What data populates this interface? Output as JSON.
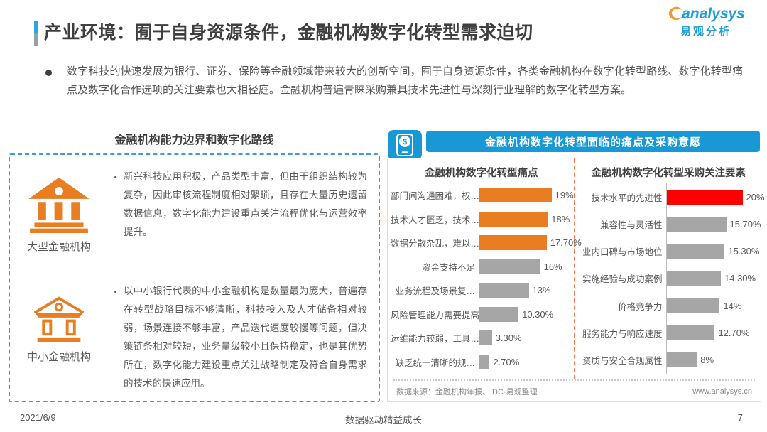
{
  "page": {
    "title": "产业环境：囿于自身资源条件，金融机构数字化转型需求迫切",
    "logo": {
      "brand": "analysys",
      "brand_cn": "易观分析"
    },
    "intro": "数字科技的快速发展为银行、证券、保险等金融领域带来较大的创新空间，囿于自身资源条件，各类金融机构在数字化转型路线、数字化转型痛点及数字化合作选项的关注要素也大相径庭。金融机构普遍青睐采购兼具技术先进性与深刻行业理解的数字化转型方案。",
    "watermark": "易观分析",
    "footer": {
      "date": "2021/6/9",
      "slogan": "数据驱动精益成长",
      "page_number": "7"
    }
  },
  "left_panel": {
    "heading": "金融机构能力边界和数字化路线",
    "items": [
      {
        "icon": "bank-large-icon",
        "label": "大型金融机构",
        "text": "新兴科技应用积极，产品类型丰富，但由于组织结构较为复杂，因此审核流程制度相对繁琐，且存在大量历史遗留数据信息，数字化能力建设重点关注流程优化与运营效率提升。"
      },
      {
        "icon": "bank-small-icon",
        "label": "中小金融机构",
        "text": "以中小银行代表的中小金融机构是数量最为庞大，普遍存在转型战略目标不够清晰，科技投入及人才储备相对较弱，场景连接不够丰富，产品迭代速度较慢等问题，但决策链条相对较短，业务量级较小且保持稳定，也是其优势所在，数字化能力建设重点关注战略制定及符合自身需求的技术的快速应用。"
      }
    ]
  },
  "right_panel": {
    "banner": "金融机构数字化转型面临的痛点及采购意愿",
    "source": "数据来源：金融机构年报、IDC·易观整理",
    "website": "www.analysys.cn"
  },
  "chart_data": [
    {
      "type": "bar",
      "orientation": "horizontal",
      "title": "金融机构数字化转型痛点",
      "categories": [
        "部门间沟通困难，权…",
        "技术人才匮乏，技术…",
        "数据分散杂乱，难以…",
        "资金支持不足",
        "业务流程及场景复…",
        "风险管理能力需要提高",
        "运维能力较弱，工具…",
        "缺乏统一清晰的规…"
      ],
      "values": [
        19,
        18,
        17.7,
        16,
        13,
        10.3,
        3.3,
        2.7
      ],
      "labels": [
        "19%",
        "18%",
        "17.70%",
        "16%",
        "13%",
        "10.30%",
        "3.30%",
        "2.70%"
      ],
      "bar_colors": [
        "#E87D21",
        "#E87D21",
        "#E87D21",
        "#A6A6A6",
        "#A6A6A6",
        "#A6A6A6",
        "#A6A6A6",
        "#A6A6A6"
      ],
      "xlim": [
        0,
        20
      ],
      "grid": false,
      "legend": null
    },
    {
      "type": "bar",
      "orientation": "horizontal",
      "title": "金融机构数字化转型采购关注要素",
      "categories": [
        "技术水平的先进性",
        "兼容性与灵活性",
        "业内口碑与市场地位",
        "实施经验与成功案例",
        "价格竞争力",
        "服务能力与响应速度",
        "资质与安全合规属性"
      ],
      "values": [
        20,
        15.7,
        15.3,
        14.3,
        14,
        12.7,
        8
      ],
      "labels": [
        "20%",
        "15.70%",
        "15.30%",
        "14.30%",
        "14%",
        "12.70%",
        "8%"
      ],
      "bar_colors": [
        "#FE0000",
        "#A6A6A6",
        "#A6A6A6",
        "#A6A6A6",
        "#A6A6A6",
        "#A6A6A6",
        "#A6A6A6"
      ],
      "xlim": [
        0,
        20
      ],
      "grid": false,
      "legend": null
    }
  ],
  "colors": {
    "accent_blue": "#1899D6",
    "logo_blue": "#1B9DD9",
    "logo_orange": "#F29A2E",
    "orange_bar": "#E87D21",
    "gray_bar": "#A6A6A6",
    "red_bar": "#FE0000",
    "dashed_panel_blue": "#3D9BD5",
    "chart_divider_orange": "#F07B51",
    "title_text": "#3F3F3F",
    "body_text": "#595959"
  }
}
